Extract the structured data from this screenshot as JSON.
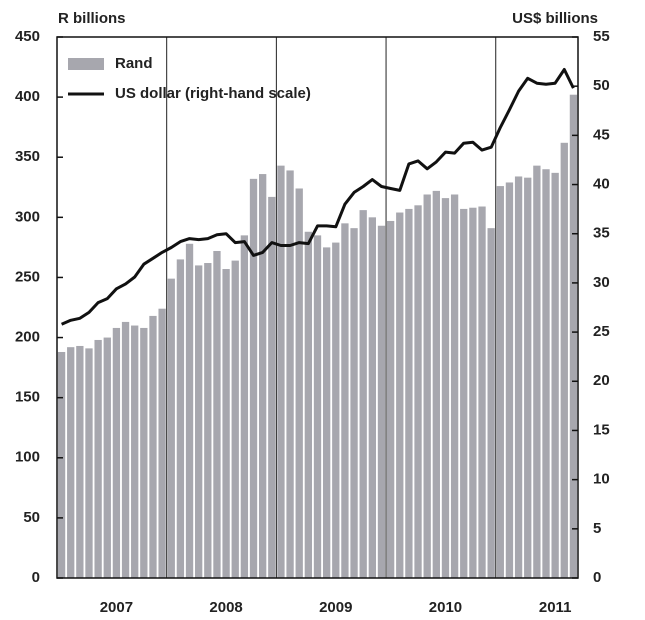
{
  "chart_data": {
    "type": "bar-line",
    "y_label": "R billions",
    "y2_label": "US$ billions",
    "categories": [
      null,
      null,
      null,
      null,
      null,
      null,
      "2007",
      null,
      null,
      null,
      null,
      null,
      null,
      null,
      null,
      null,
      null,
      null,
      "2008",
      null,
      null,
      null,
      null,
      null,
      null,
      null,
      null,
      null,
      null,
      null,
      "2009",
      null,
      null,
      null,
      null,
      null,
      null,
      null,
      null,
      null,
      null,
      null,
      "2010",
      null,
      null,
      null,
      null,
      null,
      null,
      null,
      null,
      null,
      null,
      null,
      "2011",
      null,
      null
    ],
    "series": [
      {
        "name": "Rand",
        "color": "#a7a7ae",
        "kind": "bar",
        "axis": "y",
        "values": [
          188,
          192,
          193,
          191,
          198,
          200,
          208,
          213,
          210,
          208,
          218,
          224,
          249,
          265,
          278,
          260,
          262,
          272,
          257,
          264,
          285,
          332,
          336,
          317,
          343,
          339,
          324,
          288,
          285,
          275,
          279,
          295,
          291,
          306,
          300,
          293,
          297,
          304,
          307,
          310,
          319,
          322,
          316,
          319,
          307,
          308,
          309,
          291,
          326,
          329,
          334,
          333,
          343,
          340,
          337,
          362,
          402
        ]
      },
      {
        "name": "US dollar (right-hand scale)",
        "color": "#111111",
        "kind": "line",
        "axis": "y2",
        "values": [
          25.8,
          26.2,
          26.4,
          27.0,
          28.0,
          28.4,
          29.4,
          29.9,
          30.6,
          31.9,
          32.5,
          33.1,
          33.6,
          34.2,
          34.5,
          34.4,
          34.5,
          34.9,
          35.0,
          34.1,
          34.2,
          32.8,
          33.1,
          34.1,
          33.8,
          33.8,
          34.1,
          34.0,
          35.8,
          35.8,
          35.7,
          38.0,
          39.2,
          39.8,
          40.5,
          39.8,
          39.6,
          39.4,
          42.1,
          42.4,
          41.6,
          42.3,
          43.3,
          43.2,
          44.2,
          44.3,
          43.5,
          43.8,
          45.8,
          47.6,
          49.5,
          50.8,
          50.3,
          50.2,
          50.3,
          51.7,
          49.8
        ]
      }
    ],
    "ylim": [
      0,
      450
    ],
    "yticks": [
      0,
      50,
      100,
      150,
      200,
      250,
      300,
      350,
      400,
      450
    ],
    "y2lim": [
      0,
      55
    ],
    "y2ticks": [
      0,
      5,
      10,
      15,
      20,
      25,
      30,
      35,
      40,
      45,
      50,
      55
    ],
    "legend": "top-left"
  }
}
